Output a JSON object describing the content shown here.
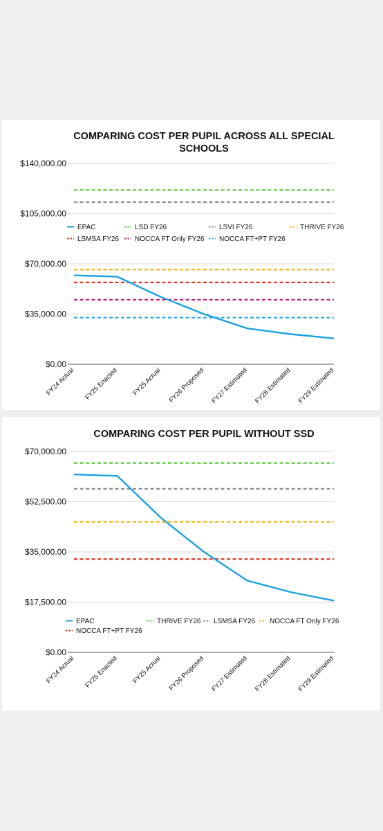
{
  "chart_data": [
    {
      "type": "line",
      "title_lines": [
        "COMPARING COST PER PUPIL ACROSS ALL SPECIAL",
        "SCHOOLS"
      ],
      "categories": [
        "FY24 Actual",
        "FY25 Enacted",
        "FY25 Actual",
        "FY26 Proposed",
        "FY27 Estimated",
        "FY28 Estimated",
        "FY29 Estimated"
      ],
      "yticks": [
        "$140,000.00",
        "$105,000.00",
        "$70,000.00",
        "$35,000.00",
        "$0.00"
      ],
      "ylim": [
        0,
        140000
      ],
      "grid": true,
      "legend_position": "middle",
      "series": [
        {
          "name": "EPAC",
          "color": "#1ba1e2",
          "style": "solid",
          "values": [
            62000,
            61000,
            47000,
            35000,
            25000,
            21000,
            18000
          ]
        },
        {
          "name": "LSD FY26",
          "color": "#55c935",
          "style": "dashed",
          "values": [
            121500,
            121500,
            121500,
            121500,
            121500,
            121500,
            121500
          ]
        },
        {
          "name": "LSVI FY26",
          "color": "#8c8c8c",
          "style": "dashed",
          "values": [
            113000,
            113000,
            113000,
            113000,
            113000,
            113000,
            113000
          ]
        },
        {
          "name": "THRIVE FY26",
          "color": "#f2b200",
          "style": "dashed",
          "values": [
            66000,
            66000,
            66000,
            66000,
            66000,
            66000,
            66000
          ]
        },
        {
          "name": "LSMSA FY26",
          "color": "#e3311d",
          "style": "dashed",
          "values": [
            57000,
            57000,
            57000,
            57000,
            57000,
            57000,
            57000
          ]
        },
        {
          "name": "NOCCA FT Only FY26",
          "color": "#b8237b",
          "style": "dashed",
          "values": [
            45000,
            45000,
            45000,
            45000,
            45000,
            45000,
            45000
          ]
        },
        {
          "name": "NOCCA FT+PT FY26",
          "color": "#2ea8df",
          "style": "dashed",
          "values": [
            32500,
            32500,
            32500,
            32500,
            32500,
            32500,
            32500
          ]
        }
      ]
    },
    {
      "type": "line",
      "title_lines": [
        "COMPARING COST PER PUPIL WITHOUT SSD"
      ],
      "categories": [
        "FY24 Actual",
        "FY25 Enacted",
        "FY25 Actual",
        "FY26 Proposed",
        "FY27 Estimated",
        "FY28 Estimated",
        "FY29 Estimated"
      ],
      "yticks": [
        "$70,000.00",
        "$52,500.00",
        "$35,000.00",
        "$17,500.00",
        "$0.00"
      ],
      "ylim": [
        0,
        70000
      ],
      "grid": true,
      "legend_position": "bottom-inside",
      "series": [
        {
          "name": "EPAC",
          "color": "#1ba1e2",
          "style": "solid",
          "values": [
            62000,
            61500,
            47000,
            35000,
            25000,
            21000,
            18000
          ]
        },
        {
          "name": "THRIVE FY26",
          "color": "#55c935",
          "style": "dashed",
          "values": [
            66000,
            66000,
            66000,
            66000,
            66000,
            66000,
            66000
          ]
        },
        {
          "name": "LSMSA FY26",
          "color": "#8c8c8c",
          "style": "dashed",
          "values": [
            57000,
            57000,
            57000,
            57000,
            57000,
            57000,
            57000
          ]
        },
        {
          "name": "NOCCA FT Only FY26",
          "color": "#f2b200",
          "style": "dashed",
          "values": [
            45500,
            45500,
            45500,
            45500,
            45500,
            45500,
            45500
          ]
        },
        {
          "name": "NOCCA FT+PT FY26",
          "color": "#e3311d",
          "style": "dashed",
          "values": [
            32500,
            32500,
            32500,
            32500,
            32500,
            32500,
            32500
          ]
        }
      ]
    }
  ]
}
